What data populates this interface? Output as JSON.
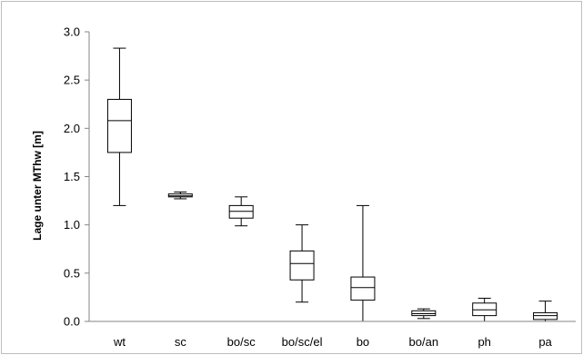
{
  "chart_data": {
    "type": "box",
    "title": "",
    "xlabel": "",
    "ylabel": "Lage unter MThw [m]",
    "ylim": [
      0,
      3.0
    ],
    "yticks": [
      "0.0",
      "0.5",
      "1.0",
      "1.5",
      "2.0",
      "2.5",
      "3.0"
    ],
    "grid": false,
    "categories": [
      "wt",
      "sc",
      "bo/sc",
      "bo/sc/el",
      "bo",
      "bo/an",
      "ph",
      "pa"
    ],
    "boxes": [
      {
        "category": "wt",
        "min": 1.2,
        "q1": 1.75,
        "median": 2.08,
        "q3": 2.3,
        "max": 2.83
      },
      {
        "category": "sc",
        "min": 1.27,
        "q1": 1.29,
        "median": 1.3,
        "q3": 1.32,
        "max": 1.34
      },
      {
        "category": "bo/sc",
        "min": 0.99,
        "q1": 1.07,
        "median": 1.14,
        "q3": 1.2,
        "max": 1.29
      },
      {
        "category": "bo/sc/el",
        "min": 0.2,
        "q1": 0.43,
        "median": 0.6,
        "q3": 0.73,
        "max": 1.0
      },
      {
        "category": "bo",
        "min": 0.0,
        "q1": 0.22,
        "median": 0.35,
        "q3": 0.46,
        "max": 1.2
      },
      {
        "category": "bo/an",
        "min": 0.03,
        "q1": 0.06,
        "median": 0.08,
        "q3": 0.11,
        "max": 0.13
      },
      {
        "category": "ph",
        "min": 0.0,
        "q1": 0.06,
        "median": 0.12,
        "q3": 0.19,
        "max": 0.24
      },
      {
        "category": "pa",
        "min": 0.0,
        "q1": 0.02,
        "median": 0.06,
        "q3": 0.09,
        "max": 0.21
      }
    ],
    "colors": {
      "box_fill": "#ffffff",
      "stroke": "#000000",
      "axis": "#868686",
      "frame": "#bdbdbd"
    }
  }
}
